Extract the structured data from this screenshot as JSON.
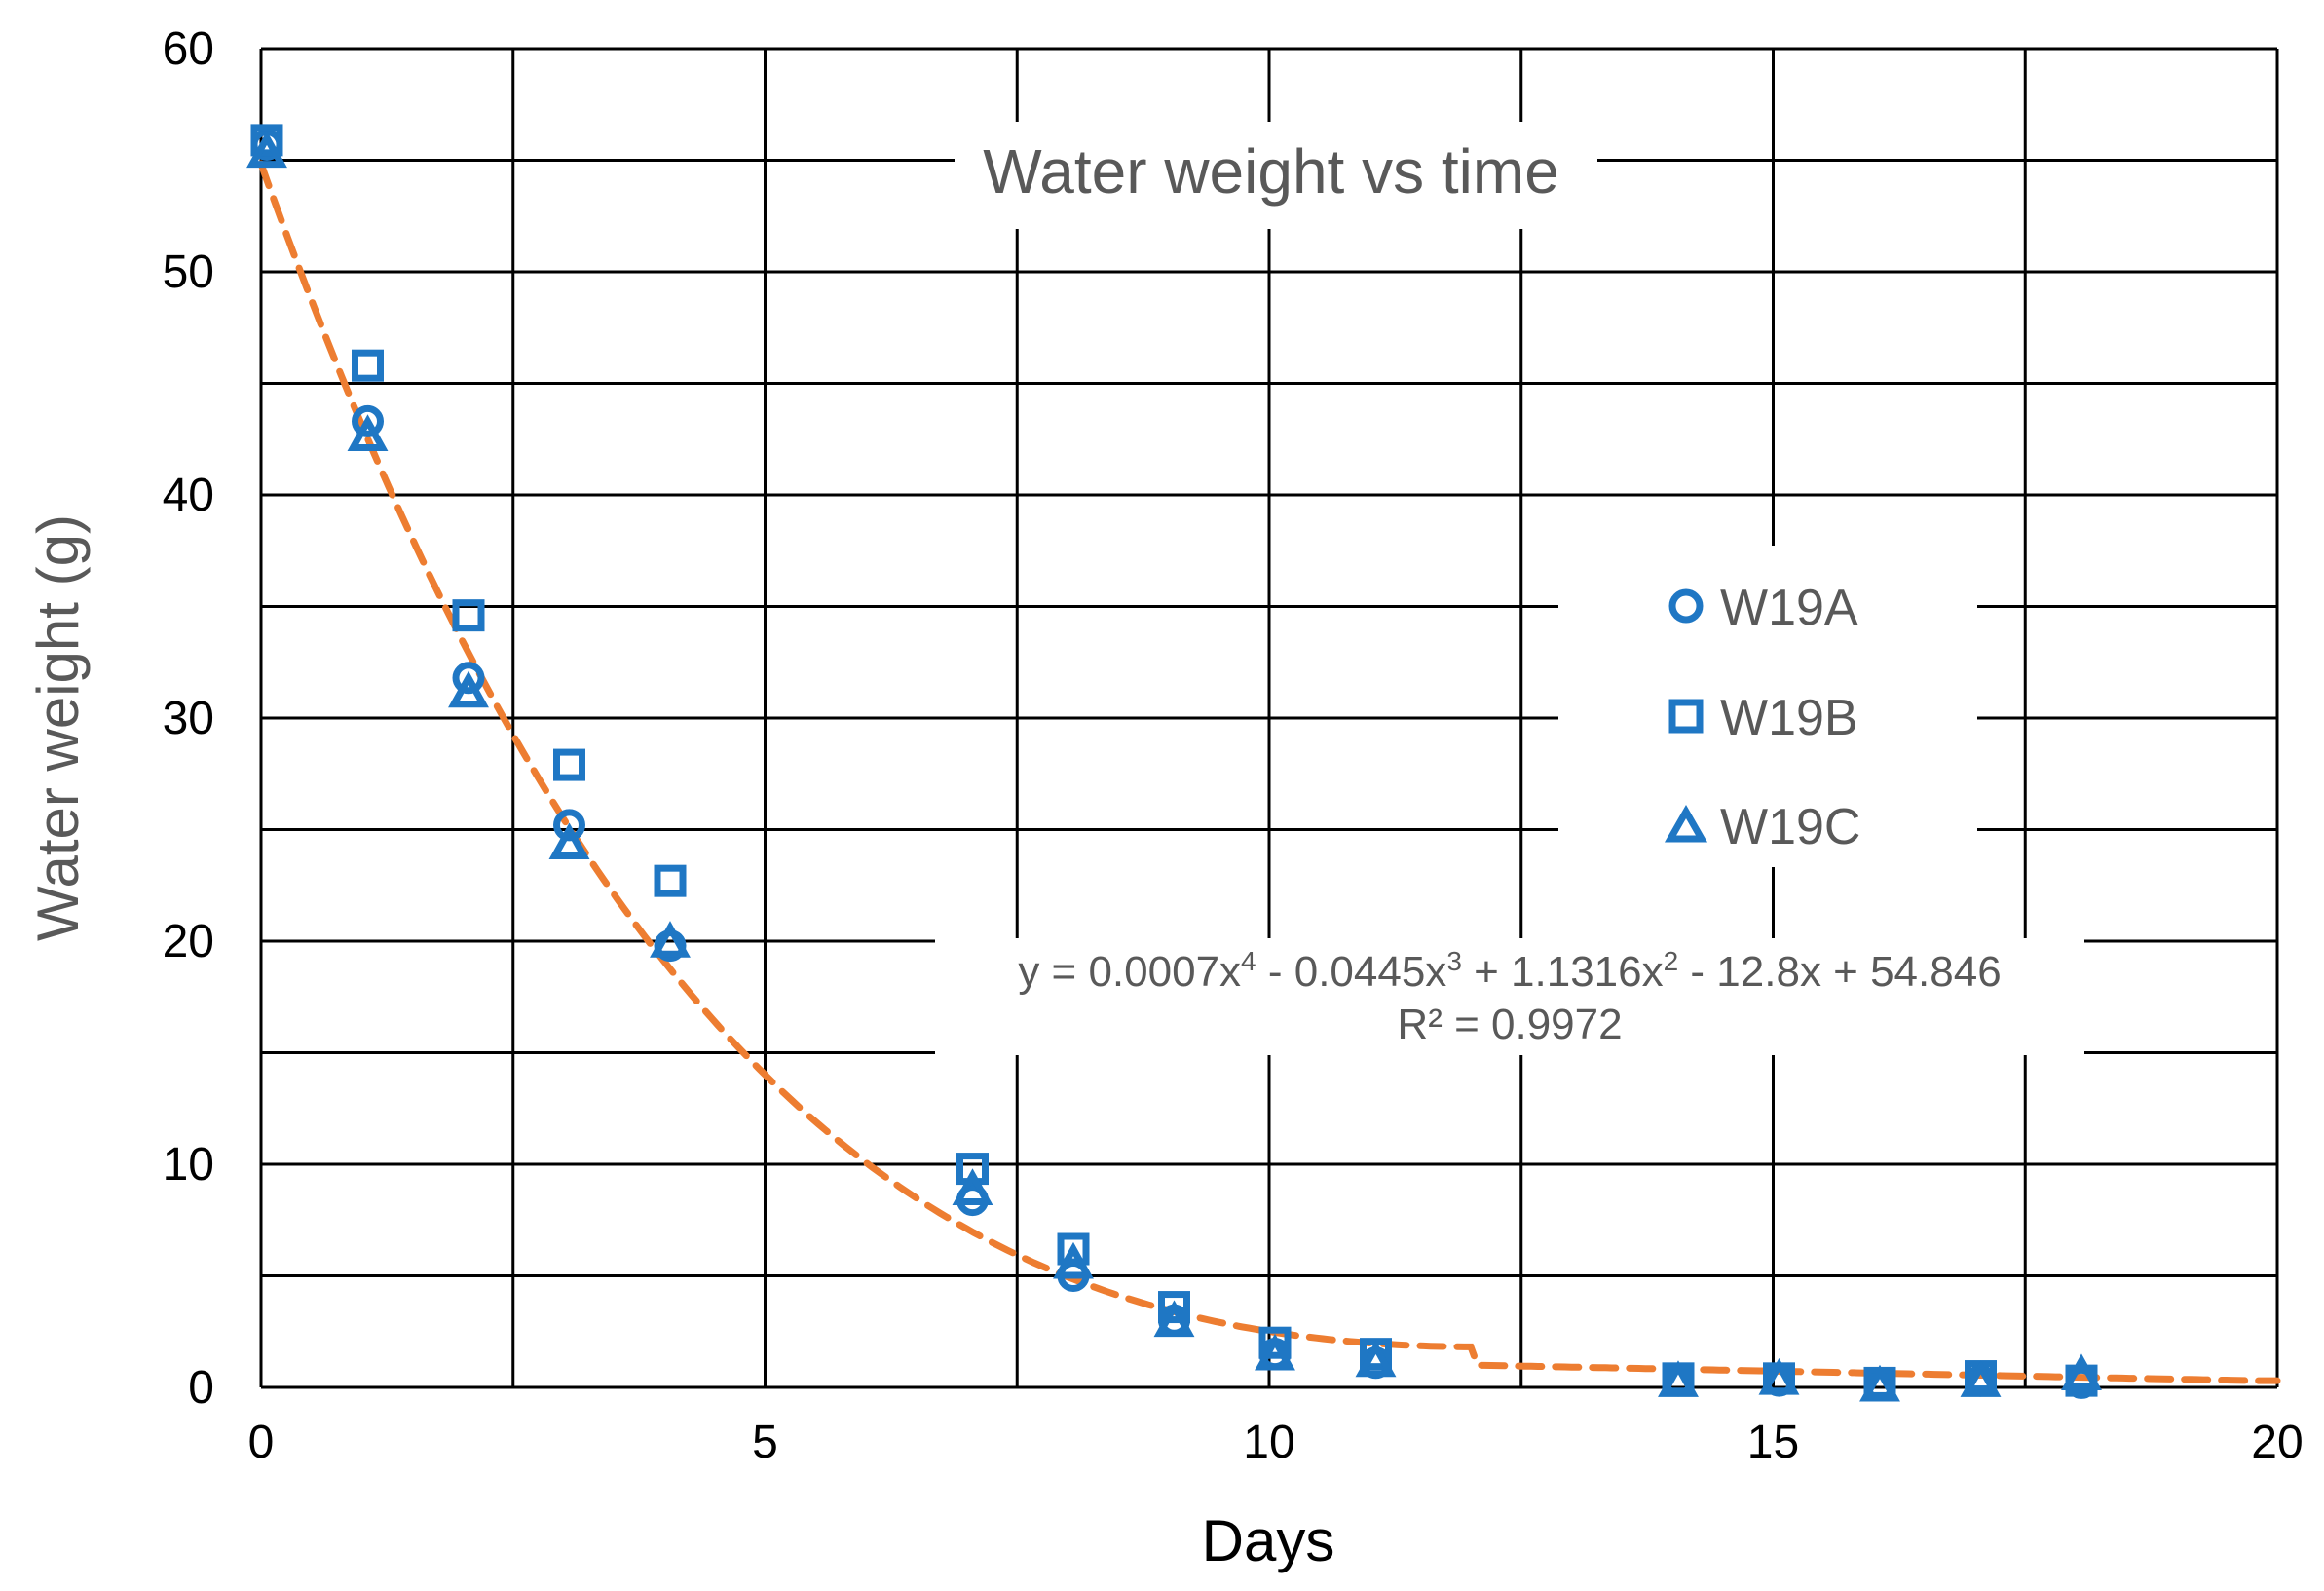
{
  "chart_data": {
    "type": "scatter",
    "title": "Water weight vs time",
    "xlabel": "Days",
    "ylabel": "Water weight (g)",
    "xlim": [
      0,
      20
    ],
    "ylim": [
      0,
      60
    ],
    "x_ticks": [
      0,
      5,
      10,
      15,
      20
    ],
    "y_ticks": [
      0,
      10,
      20,
      30,
      40,
      50,
      60
    ],
    "grid": true,
    "legend_position": "right",
    "marker_color": "#1F77C4",
    "trend_color": "#ED7D31",
    "series": [
      {
        "name": "W19A",
        "marker": "circle",
        "x": [
          0,
          1,
          2,
          3,
          4,
          7,
          8,
          9,
          10,
          11,
          14,
          15,
          16,
          17,
          18
        ],
        "y": [
          55.7,
          43.3,
          31.8,
          25.2,
          19.8,
          8.4,
          5.0,
          3.0,
          1.5,
          1.1,
          0.3,
          0.3,
          0.1,
          0.3,
          0.2
        ]
      },
      {
        "name": "W19B",
        "marker": "square",
        "x": [
          0,
          1,
          2,
          3,
          4,
          7,
          8,
          9,
          10,
          11,
          14,
          15,
          16,
          17,
          18
        ],
        "y": [
          55.9,
          45.8,
          34.6,
          27.9,
          22.7,
          9.8,
          6.2,
          3.6,
          2.0,
          1.5,
          0.4,
          0.4,
          0.2,
          0.5,
          0.3
        ]
      },
      {
        "name": "W19C",
        "marker": "triangle",
        "x": [
          0,
          1,
          2,
          3,
          4,
          7,
          8,
          9,
          10,
          11,
          14,
          15,
          16,
          17,
          18
        ],
        "y": [
          55.3,
          42.6,
          31.1,
          24.3,
          19.9,
          8.8,
          5.5,
          2.9,
          1.4,
          1.1,
          0.2,
          0.3,
          0.0,
          0.2,
          0.5
        ]
      }
    ],
    "trendline": {
      "type": "polynomial",
      "order": 4,
      "coefficients": [
        0.0007,
        -0.0445,
        1.1316,
        -12.8,
        54.846
      ],
      "equation": {
        "prefix": "y = 0.0007x",
        "p1": "4",
        "mid1": " - 0.0445x",
        "p2": "3",
        "mid2": " + 1.1316x",
        "p3": "2",
        "suffix": " - 12.8x + 54.846"
      },
      "r_squared": "R² = 0.9972",
      "x_range": [
        0,
        20
      ]
    }
  }
}
